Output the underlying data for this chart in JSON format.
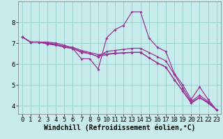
{
  "xlabel": "Windchill (Refroidissement éolien,°C)",
  "xlim": [
    -0.5,
    23.5
  ],
  "ylim": [
    3.6,
    9.0
  ],
  "xticks": [
    0,
    1,
    2,
    3,
    4,
    5,
    6,
    7,
    8,
    9,
    10,
    11,
    12,
    13,
    14,
    15,
    16,
    17,
    18,
    19,
    20,
    21,
    22,
    23
  ],
  "yticks": [
    4,
    5,
    6,
    7,
    8
  ],
  "bg_color": "#c8ecec",
  "line_color": "#993399",
  "grid_color": "#99cccc",
  "lines": [
    [
      7.3,
      7.05,
      7.05,
      7.05,
      7.0,
      6.9,
      6.75,
      6.25,
      6.25,
      5.75,
      7.25,
      7.65,
      7.85,
      8.5,
      8.5,
      7.25,
      6.8,
      6.6,
      5.55,
      5.0,
      4.3,
      4.9,
      4.3,
      3.8
    ],
    [
      7.3,
      7.05,
      7.05,
      7.0,
      6.95,
      6.8,
      6.75,
      6.55,
      6.5,
      6.35,
      6.6,
      6.65,
      6.7,
      6.75,
      6.75,
      6.55,
      6.35,
      6.15,
      5.5,
      4.85,
      4.2,
      4.5,
      4.2,
      3.8
    ],
    [
      7.3,
      7.05,
      7.05,
      6.95,
      6.9,
      6.8,
      6.75,
      6.6,
      6.5,
      6.35,
      6.45,
      6.5,
      6.52,
      6.55,
      6.55,
      6.3,
      6.05,
      5.85,
      5.25,
      4.7,
      4.15,
      4.4,
      4.15,
      3.8
    ],
    [
      7.3,
      7.05,
      7.05,
      6.98,
      6.93,
      6.85,
      6.8,
      6.65,
      6.55,
      6.45,
      6.48,
      6.52,
      6.54,
      6.56,
      6.56,
      6.3,
      6.05,
      5.85,
      5.25,
      4.7,
      4.12,
      4.38,
      4.12,
      3.8
    ]
  ],
  "tick_fontsize": 6.5,
  "label_fontsize": 7.0
}
